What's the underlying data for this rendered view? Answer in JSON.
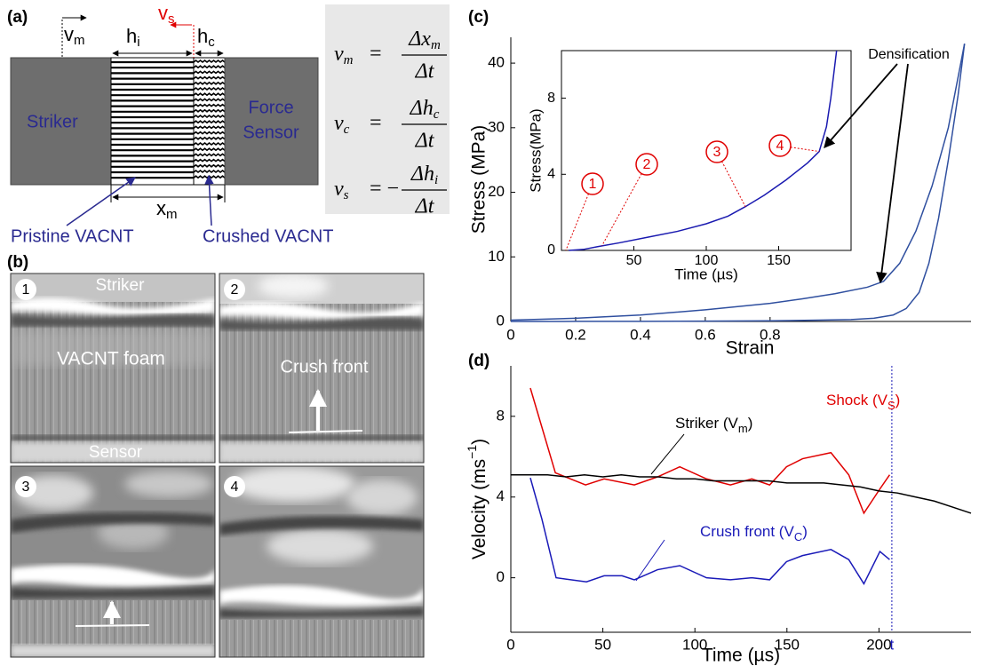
{
  "panel_labels": [
    "(a)",
    "(b)",
    "(c)",
    "(d)"
  ],
  "diagram": {
    "v_m": {
      "text": "v",
      "sub": "m"
    },
    "v_s": {
      "text": "v",
      "sub": "s"
    },
    "h_i": {
      "text": "h",
      "sub": "i"
    },
    "h_c": {
      "text": "h",
      "sub": "c"
    },
    "x_m": {
      "text": "x",
      "sub": "m"
    },
    "striker": "Striker",
    "sensor": [
      "Force",
      "Sensor"
    ],
    "pristine": "Pristine VACNT",
    "crushed": "Crushed VACNT",
    "equations": [
      {
        "lhs": "v",
        "lhs_sub": "m",
        "eq": "=",
        "num": "Δx",
        "num_sub": "m",
        "den": "Δt"
      },
      {
        "lhs": "v",
        "lhs_sub": "c",
        "eq": "=",
        "num": "Δh",
        "num_sub": "c",
        "den": "Δt"
      },
      {
        "lhs": "v",
        "lhs_sub": "s",
        "eq": "= −",
        "num": "Δh",
        "num_sub": "i",
        "den": "Δt"
      }
    ]
  },
  "photos": {
    "numbers": [
      "1",
      "2",
      "3",
      "4"
    ],
    "labels": [
      "Striker",
      "VACNT foam",
      "Sensor",
      "Crush front"
    ]
  },
  "chart_data": [
    {
      "type": "line",
      "xlabel": "Strain",
      "ylabel": "Stress (MPa)",
      "xlim": [
        0,
        1.42
      ],
      "ylim": [
        0,
        44
      ],
      "xticks": [
        0,
        0.2,
        0.4,
        0.6,
        0.8
      ],
      "yticks": [
        0,
        10,
        20,
        30,
        40
      ],
      "annotation": "Densification",
      "series": [
        {
          "color": "#2f4f9f",
          "x": [
            0,
            0.2,
            0.4,
            0.6,
            0.8,
            0.9,
            1.0,
            1.1,
            1.15,
            1.2,
            1.25,
            1.3,
            1.35,
            1.4
          ],
          "values": [
            0.2,
            0.5,
            1.0,
            1.8,
            2.8,
            3.5,
            4.3,
            5.3,
            6.2,
            9,
            14,
            21,
            30,
            43
          ]
        },
        {
          "color": "#2f4f9f",
          "x": [
            1.4,
            1.38,
            1.35,
            1.32,
            1.29,
            1.26,
            1.22,
            1.18,
            1.12,
            1.05,
            0.95,
            0.8,
            0.6,
            0.4,
            0.2,
            0
          ],
          "values": [
            43,
            35,
            25,
            16,
            9,
            4.5,
            2,
            1,
            0.5,
            0.3,
            0.2,
            0.1,
            0.05,
            0.02,
            0.01,
            0
          ]
        }
      ]
    },
    {
      "type": "line",
      "xlabel": "Time (µs)",
      "ylabel": "Stress(MPa)",
      "xlim": [
        0,
        200
      ],
      "ylim": [
        0,
        10.5
      ],
      "xticks": [
        50,
        100,
        150
      ],
      "yticks": [
        0,
        4,
        8
      ],
      "series": [
        {
          "color": "#1a1ab0",
          "x": [
            5,
            15,
            25,
            40,
            60,
            80,
            100,
            115,
            127,
            140,
            155,
            170,
            178,
            183,
            186,
            190
          ],
          "values": [
            0,
            0.05,
            0.2,
            0.4,
            0.7,
            1.0,
            1.4,
            1.8,
            2.3,
            2.9,
            3.7,
            4.6,
            5.2,
            6.5,
            8,
            10.5
          ]
        }
      ],
      "markers": [
        {
          "label": "1",
          "x": 3,
          "y": 0
        },
        {
          "label": "2",
          "x": 28,
          "y": 0.25
        },
        {
          "label": "3",
          "x": 127,
          "y": 2.3
        },
        {
          "label": "4",
          "x": 178,
          "y": 5.2
        }
      ]
    },
    {
      "type": "line",
      "xlabel": "Time (µs)",
      "ylabel": {
        "text": "Velocity (ms",
        "sup": "−1",
        "tail": ")"
      },
      "xlim": [
        0,
        250
      ],
      "ylim": [
        -2.7,
        10.5
      ],
      "xticks": [
        0,
        50,
        100,
        150,
        200
      ],
      "yticks": [
        0,
        4,
        8
      ],
      "vline": {
        "x": 207,
        "label": "t"
      },
      "series": [
        {
          "name": {
            "text": "Shock (V",
            "sub": "S",
            "tail": ")"
          },
          "color": "#e00000",
          "x": [
            10.6,
            24.2,
            40.6,
            50.7,
            67.1,
            79.7,
            91.8,
            106.3,
            119.3,
            130.9,
            140.6,
            149.8,
            158.5,
            173.9,
            183.6,
            191.8,
            200.5,
            205.8
          ],
          "values": [
            9.4,
            5.2,
            4.6,
            4.9,
            4.6,
            5.0,
            5.5,
            4.9,
            4.6,
            4.9,
            4.6,
            5.5,
            5.9,
            6.2,
            5.1,
            3.2,
            4.4,
            5.1
          ]
        },
        {
          "name": {
            "text": "Striker (V",
            "sub": "m",
            "tail": ")"
          },
          "color": "#000000",
          "x": [
            0,
            10,
            20,
            30,
            40,
            50,
            60,
            70,
            80,
            90,
            100,
            110,
            120,
            130,
            140,
            150,
            160,
            170,
            180,
            190,
            200,
            210,
            220,
            230,
            240,
            250
          ],
          "values": [
            5.1,
            5.1,
            5.1,
            5.0,
            5.1,
            5.0,
            5.1,
            5.0,
            5.0,
            4.9,
            4.9,
            4.8,
            4.8,
            4.8,
            4.8,
            4.7,
            4.7,
            4.7,
            4.6,
            4.5,
            4.3,
            4.2,
            4.0,
            3.8,
            3.5,
            3.2
          ]
        },
        {
          "name": {
            "text": "Crush front (V",
            "sub": "C",
            "tail": ")"
          },
          "color": "#1a1ab8",
          "x": [
            10.6,
            16.9,
            24.6,
            41.1,
            50.7,
            60.4,
            67.1,
            79.7,
            91.8,
            106.3,
            119.3,
            130.9,
            140.6,
            149.8,
            158.5,
            173.9,
            183.6,
            191.8,
            200.5,
            205.8
          ],
          "values": [
            4.95,
            2.9,
            0.0,
            -0.2,
            0.1,
            0.1,
            -0.1,
            0.4,
            0.6,
            0.0,
            -0.1,
            0.0,
            -0.1,
            0.8,
            1.1,
            1.4,
            0.9,
            -0.3,
            1.3,
            0.9
          ]
        }
      ]
    }
  ]
}
